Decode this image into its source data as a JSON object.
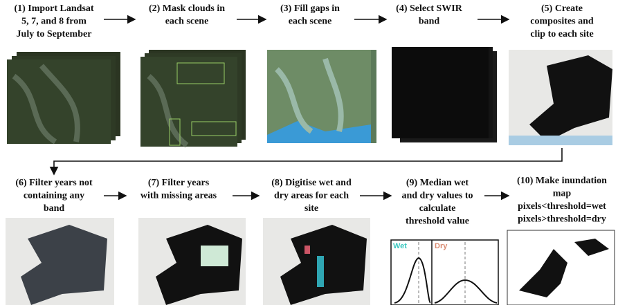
{
  "steps": [
    {
      "label": [
        "(1) Import  Landsat",
        "5, 7, and 8 from",
        "July to September"
      ]
    },
    {
      "label": [
        "(2) Mask clouds in",
        "each scene"
      ]
    },
    {
      "label": [
        "(3) Fill gaps in",
        "each scene"
      ]
    },
    {
      "label": [
        "(4) Select SWIR",
        "band"
      ]
    },
    {
      "label": [
        "(5) Create",
        "composites and",
        "clip to each site"
      ]
    },
    {
      "label": [
        "(6) Filter years not",
        "containing  any",
        "band"
      ]
    },
    {
      "label": [
        "(7) Filter years",
        "with missing areas"
      ]
    },
    {
      "label": [
        "(8) Digitise wet and",
        "dry areas for each",
        "site"
      ]
    },
    {
      "label": [
        "(9) Median wet",
        "and dry values to",
        "calculate",
        "threshold value"
      ]
    },
    {
      "label": [
        "(10) Make inundation",
        "map",
        "pixels<threshold=wet",
        "pixels>threshold=dry"
      ]
    }
  ],
  "plot": {
    "wet": "Wet",
    "dry": "Dry"
  }
}
